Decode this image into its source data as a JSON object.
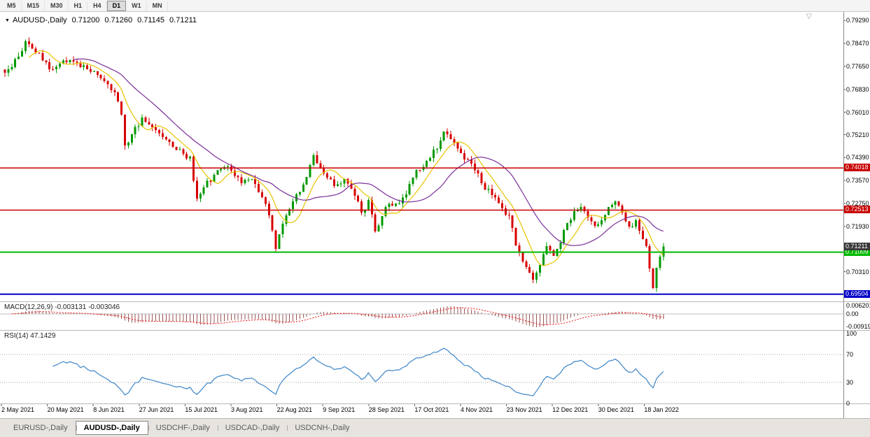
{
  "icons": {
    "dropdown": "▼",
    "shift_marker": "▽"
  },
  "toolbar": {
    "timeframes": [
      {
        "label": "M5",
        "active": false
      },
      {
        "label": "M15",
        "active": false
      },
      {
        "label": "M30",
        "active": false
      },
      {
        "label": "H1",
        "active": false
      },
      {
        "label": "H4",
        "active": false
      },
      {
        "label": "D1",
        "active": true
      },
      {
        "label": "W1",
        "active": false
      },
      {
        "label": "MN",
        "active": false
      }
    ]
  },
  "chart_header": {
    "symbol": "AUDUSD-,Daily",
    "open": "0.71200",
    "high": "0.71260",
    "low": "0.71145",
    "close": "0.71211"
  },
  "chart_data": {
    "type": "candlestick",
    "symbol": "AUDUSD",
    "timeframe": "Daily",
    "title": "AUDUSD-,Daily",
    "ohlc_display": {
      "open": 0.712,
      "high": 0.7126,
      "low": 0.71145,
      "close": 0.71211
    },
    "ylim": [
      0.69275,
      0.79575
    ],
    "y_ticks": [
      "0.79290",
      "0.78470",
      "0.77650",
      "0.76830",
      "0.76010",
      "0.75210",
      "0.74390",
      "0.73570",
      "0.72750",
      "0.71930",
      "0.70310"
    ],
    "x_labels": [
      "2 May 2021",
      "20 May 2021",
      "8 Jun 2021",
      "27 Jun 2021",
      "15 Jul 2021",
      "3 Aug 2021",
      "22 Aug 2021",
      "9 Sep 2021",
      "28 Sep 2021",
      "17 Oct 2021",
      "4 Nov 2021",
      "23 Nov 2021",
      "12 Dec 2021",
      "30 Dec 2021",
      "18 Jan 2022"
    ],
    "num_candles": 193,
    "price_waypoints": [
      [
        0,
        0.7742
      ],
      [
        2,
        0.7762
      ],
      [
        4,
        0.78
      ],
      [
        5,
        0.782
      ],
      [
        6,
        0.7855
      ],
      [
        7,
        0.7845
      ],
      [
        10,
        0.7812
      ],
      [
        13,
        0.7755
      ],
      [
        16,
        0.7775
      ],
      [
        19,
        0.7788
      ],
      [
        22,
        0.7762
      ],
      [
        26,
        0.7748
      ],
      [
        29,
        0.7712
      ],
      [
        32,
        0.7672
      ],
      [
        34,
        0.7592
      ],
      [
        35,
        0.7482
      ],
      [
        37,
        0.7522
      ],
      [
        40,
        0.7582
      ],
      [
        43,
        0.7548
      ],
      [
        46,
        0.7512
      ],
      [
        49,
        0.7478
      ],
      [
        52,
        0.7452
      ],
      [
        54,
        0.7442
      ],
      [
        56,
        0.7292
      ],
      [
        58,
        0.7332
      ],
      [
        61,
        0.7378
      ],
      [
        64,
        0.7405
      ],
      [
        66,
        0.7392
      ],
      [
        69,
        0.7348
      ],
      [
        72,
        0.7362
      ],
      [
        75,
        0.7298
      ],
      [
        77,
        0.7232
      ],
      [
        79,
        0.7112
      ],
      [
        81,
        0.7202
      ],
      [
        84,
        0.7282
      ],
      [
        87,
        0.7342
      ],
      [
        90,
        0.7448
      ],
      [
        93,
        0.7382
      ],
      [
        96,
        0.7338
      ],
      [
        99,
        0.7362
      ],
      [
        102,
        0.7302
      ],
      [
        104,
        0.7242
      ],
      [
        106,
        0.7288
      ],
      [
        108,
        0.7175
      ],
      [
        111,
        0.7262
      ],
      [
        114,
        0.7275
      ],
      [
        117,
        0.7308
      ],
      [
        120,
        0.7395
      ],
      [
        123,
        0.7428
      ],
      [
        126,
        0.747
      ],
      [
        128,
        0.7532
      ],
      [
        130,
        0.7505
      ],
      [
        133,
        0.7455
      ],
      [
        136,
        0.7418
      ],
      [
        139,
        0.7348
      ],
      [
        142,
        0.7305
      ],
      [
        145,
        0.7258
      ],
      [
        147,
        0.7232
      ],
      [
        149,
        0.7125
      ],
      [
        151,
        0.7068
      ],
      [
        154,
        0.7002
      ],
      [
        156,
        0.7055
      ],
      [
        158,
        0.7122
      ],
      [
        160,
        0.7088
      ],
      [
        162,
        0.7135
      ],
      [
        164,
        0.7205
      ],
      [
        166,
        0.7248
      ],
      [
        168,
        0.7262
      ],
      [
        170,
        0.7225
      ],
      [
        172,
        0.7195
      ],
      [
        174,
        0.7215
      ],
      [
        176,
        0.7262
      ],
      [
        178,
        0.7282
      ],
      [
        180,
        0.7242
      ],
      [
        182,
        0.7192
      ],
      [
        184,
        0.7215
      ],
      [
        185,
        0.7178
      ],
      [
        186,
        0.7148
      ],
      [
        187,
        0.7122
      ],
      [
        188,
        0.7042
      ],
      [
        189,
        0.6972
      ],
      [
        190,
        0.7045
      ],
      [
        191,
        0.7085
      ],
      [
        192,
        0.7121
      ]
    ],
    "up_color": "#009a00",
    "down_color": "#d80000",
    "moving_averages": [
      {
        "period": 8,
        "color": "#e8c400"
      },
      {
        "period": 21,
        "color": "#7a2d9a"
      }
    ],
    "hlines": [
      {
        "price": 0.74018,
        "color": "#c80000",
        "width": 1.5
      },
      {
        "price": 0.72513,
        "color": "#c80000",
        "width": 1.5
      },
      {
        "price": 0.71009,
        "color": "#00b800",
        "width": 2
      },
      {
        "price": 0.69504,
        "color": "#0000c8",
        "width": 2
      }
    ],
    "current_price": 0.71211,
    "current_price_bg": "#3a3a3a"
  },
  "indicators": {
    "macd": {
      "label": "MACD(12,26,9) -0.003131 -0.003046",
      "fast": 12,
      "slow": 26,
      "signal": 9,
      "value_main": "-0.003131",
      "value_signal": "-0.003046",
      "axis_labels": [
        "0.0062013",
        "0.00",
        "-0.0091917"
      ],
      "ylim": [
        -0.0107,
        0.0077
      ],
      "histogram_color": "#995555",
      "signal_color": "#ee1111"
    },
    "rsi": {
      "label": "RSI(14) 47.1429",
      "period": 14,
      "value": "47.1429",
      "axis_labels": [
        "100",
        "70",
        "30",
        "0"
      ],
      "levels": [
        70,
        30
      ],
      "line_color": "#3d85c8"
    }
  },
  "bottom_tabs": [
    {
      "label": "EURUSD-,Daily",
      "active": false
    },
    {
      "label": "AUDUSD-,Daily",
      "active": true
    },
    {
      "label": "USDCHF-,Daily",
      "active": false
    },
    {
      "label": "USDCAD-,Daily",
      "active": false
    },
    {
      "label": "USDCNH-,Daily",
      "active": false
    }
  ]
}
